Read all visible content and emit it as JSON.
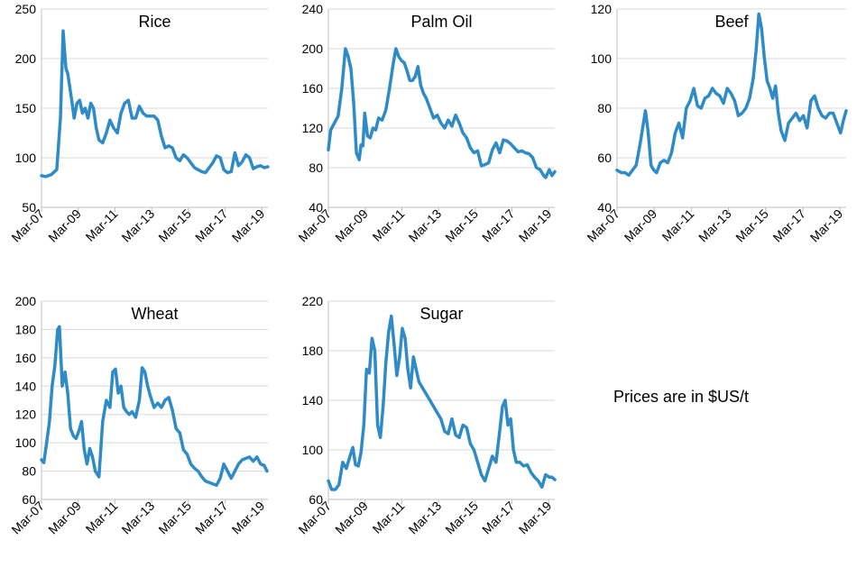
{
  "note": "Prices are in $US/t",
  "colors": {
    "line": "#2e8bc7",
    "grid": "#d9d9d9",
    "axis": "#bfbfbf",
    "text": "#000000"
  },
  "chart_data": [
    {
      "type": "line",
      "title": "Rice",
      "ylim": [
        50,
        250
      ],
      "yticks": [
        50,
        100,
        150,
        200,
        250
      ],
      "xlim": [
        2007.17,
        2019.5
      ],
      "xticks": [
        {
          "label": "Mar-07",
          "x": 2007.17
        },
        {
          "label": "Mar-09",
          "x": 2009.17
        },
        {
          "label": "Mar-11",
          "x": 2011.17
        },
        {
          "label": "Mar-13",
          "x": 2013.17
        },
        {
          "label": "Mar-15",
          "x": 2015.17
        },
        {
          "label": "Mar-17",
          "x": 2017.17
        },
        {
          "label": "Mar-19",
          "x": 2019.17
        }
      ],
      "x": [
        2007.17,
        2007.4,
        2007.7,
        2008.0,
        2008.2,
        2008.35,
        2008.42,
        2008.5,
        2008.6,
        2008.8,
        2008.95,
        2009.1,
        2009.25,
        2009.4,
        2009.55,
        2009.7,
        2009.85,
        2010.0,
        2010.15,
        2010.3,
        2010.5,
        2010.7,
        2010.9,
        2011.1,
        2011.3,
        2011.5,
        2011.7,
        2011.9,
        2012.1,
        2012.3,
        2012.5,
        2012.7,
        2012.9,
        2013.1,
        2013.3,
        2013.5,
        2013.7,
        2013.9,
        2014.1,
        2014.3,
        2014.5,
        2014.7,
        2014.9,
        2015.1,
        2015.3,
        2015.5,
        2015.7,
        2015.9,
        2016.1,
        2016.3,
        2016.5,
        2016.7,
        2016.9,
        2017.1,
        2017.3,
        2017.5,
        2017.7,
        2017.9,
        2018.1,
        2018.3,
        2018.5,
        2018.7,
        2018.9,
        2019.1,
        2019.3,
        2019.5
      ],
      "values": [
        82,
        81,
        83,
        88,
        140,
        228,
        210,
        190,
        185,
        160,
        140,
        155,
        158,
        145,
        150,
        140,
        155,
        150,
        130,
        118,
        115,
        125,
        138,
        130,
        125,
        145,
        155,
        158,
        140,
        140,
        152,
        145,
        142,
        142,
        142,
        138,
        122,
        110,
        112,
        110,
        100,
        97,
        103,
        100,
        95,
        90,
        88,
        86,
        85,
        90,
        95,
        102,
        100,
        88,
        85,
        86,
        105,
        92,
        96,
        103,
        100,
        89,
        91,
        92,
        90,
        91
      ]
    },
    {
      "type": "line",
      "title": "Palm Oil",
      "ylim": [
        40,
        240
      ],
      "yticks": [
        40,
        80,
        120,
        160,
        200,
        240
      ],
      "xlim": [
        2007.17,
        2019.5
      ],
      "xticks": [
        {
          "label": "Mar-07",
          "x": 2007.17
        },
        {
          "label": "Mar-09",
          "x": 2009.17
        },
        {
          "label": "Mar-11",
          "x": 2011.17
        },
        {
          "label": "Mar-13",
          "x": 2013.17
        },
        {
          "label": "Mar-15",
          "x": 2015.17
        },
        {
          "label": "Mar-17",
          "x": 2017.17
        },
        {
          "label": "Mar-19",
          "x": 2019.17
        }
      ],
      "x": [
        2007.17,
        2007.3,
        2007.5,
        2007.7,
        2007.9,
        2008.1,
        2008.25,
        2008.4,
        2008.55,
        2008.7,
        2008.85,
        2008.95,
        2009.05,
        2009.15,
        2009.3,
        2009.45,
        2009.6,
        2009.75,
        2009.9,
        2010.1,
        2010.3,
        2010.5,
        2010.7,
        2010.85,
        2011.0,
        2011.15,
        2011.3,
        2011.45,
        2011.6,
        2011.75,
        2011.9,
        2012.05,
        2012.2,
        2012.35,
        2012.5,
        2012.7,
        2012.9,
        2013.1,
        2013.3,
        2013.5,
        2013.7,
        2013.9,
        2014.1,
        2014.3,
        2014.5,
        2014.7,
        2014.9,
        2015.1,
        2015.3,
        2015.5,
        2015.7,
        2015.9,
        2016.1,
        2016.3,
        2016.5,
        2016.7,
        2016.9,
        2017.1,
        2017.3,
        2017.5,
        2017.7,
        2017.9,
        2018.1,
        2018.3,
        2018.5,
        2018.7,
        2018.9,
        2019.0,
        2019.2,
        2019.35,
        2019.5
      ],
      "values": [
        98,
        118,
        125,
        132,
        160,
        200,
        192,
        180,
        145,
        95,
        88,
        103,
        102,
        135,
        112,
        110,
        120,
        118,
        130,
        128,
        138,
        160,
        185,
        200,
        192,
        188,
        186,
        178,
        168,
        168,
        172,
        182,
        163,
        155,
        150,
        140,
        130,
        133,
        125,
        120,
        128,
        122,
        133,
        125,
        115,
        110,
        100,
        95,
        97,
        82,
        83,
        85,
        98,
        105,
        95,
        108,
        107,
        104,
        100,
        96,
        97,
        95,
        94,
        90,
        80,
        78,
        72,
        70,
        78,
        72,
        76
      ]
    },
    {
      "type": "line",
      "title": "Beef",
      "ylim": [
        40,
        120
      ],
      "yticks": [
        40,
        60,
        80,
        100,
        120
      ],
      "xlim": [
        2007.17,
        2019.5
      ],
      "xticks": [
        {
          "label": "Mar-07",
          "x": 2007.17
        },
        {
          "label": "Mar-09",
          "x": 2009.17
        },
        {
          "label": "Mar-11",
          "x": 2011.17
        },
        {
          "label": "Mar-13",
          "x": 2013.17
        },
        {
          "label": "Mar-15",
          "x": 2015.17
        },
        {
          "label": "Mar-17",
          "x": 2017.17
        },
        {
          "label": "Mar-19",
          "x": 2019.17
        }
      ],
      "x": [
        2007.17,
        2007.4,
        2007.6,
        2007.8,
        2008.0,
        2008.2,
        2008.4,
        2008.55,
        2008.7,
        2008.85,
        2009.0,
        2009.15,
        2009.3,
        2009.5,
        2009.7,
        2009.9,
        2010.1,
        2010.3,
        2010.5,
        2010.7,
        2010.9,
        2011.1,
        2011.3,
        2011.5,
        2011.7,
        2011.9,
        2012.1,
        2012.3,
        2012.5,
        2012.7,
        2012.9,
        2013.1,
        2013.3,
        2013.5,
        2013.7,
        2013.9,
        2014.1,
        2014.3,
        2014.5,
        2014.65,
        2014.8,
        2014.95,
        2015.1,
        2015.25,
        2015.4,
        2015.55,
        2015.7,
        2015.85,
        2016.0,
        2016.2,
        2016.4,
        2016.6,
        2016.8,
        2017.0,
        2017.2,
        2017.4,
        2017.6,
        2017.8,
        2018.0,
        2018.2,
        2018.4,
        2018.6,
        2018.8,
        2019.0,
        2019.2,
        2019.35,
        2019.5
      ],
      "values": [
        55,
        54,
        54,
        53,
        55,
        57,
        65,
        72,
        79,
        70,
        57,
        55,
        54,
        58,
        59,
        58,
        62,
        70,
        74,
        68,
        80,
        83,
        88,
        81,
        80,
        84,
        85,
        88,
        86,
        85,
        82,
        88,
        86,
        83,
        77,
        78,
        80,
        84,
        92,
        103,
        118,
        112,
        100,
        91,
        88,
        84,
        89,
        78,
        71,
        67,
        74,
        76,
        78,
        75,
        77,
        72,
        83,
        85,
        80,
        77,
        76,
        78,
        78,
        74,
        70,
        75,
        79
      ]
    },
    {
      "type": "line",
      "title": "Wheat",
      "ylim": [
        60,
        200
      ],
      "yticks": [
        60,
        80,
        100,
        120,
        140,
        160,
        180,
        200
      ],
      "xlim": [
        2007.17,
        2019.5
      ],
      "xticks": [
        {
          "label": "Mar-07",
          "x": 2007.17
        },
        {
          "label": "Mar-09",
          "x": 2009.17
        },
        {
          "label": "Mar-11",
          "x": 2011.17
        },
        {
          "label": "Mar-13",
          "x": 2013.17
        },
        {
          "label": "Mar-15",
          "x": 2015.17
        },
        {
          "label": "Mar-17",
          "x": 2017.17
        },
        {
          "label": "Mar-19",
          "x": 2019.17
        }
      ],
      "x": [
        2007.17,
        2007.3,
        2007.45,
        2007.6,
        2007.75,
        2007.9,
        2008.05,
        2008.15,
        2008.3,
        2008.45,
        2008.6,
        2008.75,
        2008.9,
        2009.05,
        2009.2,
        2009.35,
        2009.5,
        2009.65,
        2009.8,
        2009.95,
        2010.1,
        2010.3,
        2010.5,
        2010.7,
        2010.9,
        2011.05,
        2011.2,
        2011.35,
        2011.5,
        2011.65,
        2011.8,
        2011.95,
        2012.1,
        2012.3,
        2012.5,
        2012.65,
        2012.8,
        2012.95,
        2013.1,
        2013.3,
        2013.5,
        2013.7,
        2013.9,
        2014.1,
        2014.3,
        2014.5,
        2014.7,
        2014.9,
        2015.1,
        2015.3,
        2015.5,
        2015.7,
        2015.9,
        2016.1,
        2016.3,
        2016.5,
        2016.7,
        2016.9,
        2017.1,
        2017.3,
        2017.5,
        2017.7,
        2017.9,
        2018.1,
        2018.3,
        2018.5,
        2018.7,
        2018.9,
        2019.1,
        2019.3,
        2019.45
      ],
      "values": [
        88,
        86,
        100,
        115,
        140,
        155,
        180,
        182,
        140,
        150,
        135,
        110,
        105,
        103,
        108,
        115,
        95,
        85,
        96,
        90,
        80,
        76,
        115,
        130,
        125,
        150,
        152,
        135,
        140,
        125,
        122,
        120,
        122,
        118,
        130,
        153,
        150,
        140,
        133,
        125,
        128,
        125,
        130,
        132,
        123,
        110,
        107,
        95,
        92,
        85,
        82,
        80,
        76,
        73,
        72,
        71,
        70,
        75,
        85,
        80,
        75,
        80,
        85,
        88,
        89,
        90,
        87,
        90,
        85,
        84,
        80
      ]
    },
    {
      "type": "line",
      "title": "Sugar",
      "ylim": [
        60,
        220
      ],
      "yticks": [
        60,
        100,
        140,
        180,
        220
      ],
      "xlim": [
        2007.17,
        2019.5
      ],
      "xticks": [
        {
          "label": "Mar-07",
          "x": 2007.17
        },
        {
          "label": "Mar-09",
          "x": 2009.17
        },
        {
          "label": "Mar-11",
          "x": 2011.17
        },
        {
          "label": "Mar-13",
          "x": 2013.17
        },
        {
          "label": "Mar-15",
          "x": 2015.17
        },
        {
          "label": "Mar-17",
          "x": 2017.17
        },
        {
          "label": "Mar-19",
          "x": 2019.17
        }
      ],
      "x": [
        2007.17,
        2007.35,
        2007.55,
        2007.75,
        2007.95,
        2008.15,
        2008.35,
        2008.5,
        2008.65,
        2008.8,
        2008.95,
        2009.1,
        2009.25,
        2009.4,
        2009.55,
        2009.7,
        2009.85,
        2010.0,
        2010.15,
        2010.3,
        2010.45,
        2010.6,
        2010.75,
        2010.9,
        2011.05,
        2011.2,
        2011.35,
        2011.5,
        2011.65,
        2011.8,
        2011.95,
        2012.1,
        2012.3,
        2012.5,
        2012.7,
        2012.9,
        2013.1,
        2013.3,
        2013.5,
        2013.7,
        2013.9,
        2014.1,
        2014.3,
        2014.5,
        2014.7,
        2014.9,
        2015.1,
        2015.3,
        2015.5,
        2015.7,
        2015.9,
        2016.1,
        2016.3,
        2016.5,
        2016.65,
        2016.8,
        2016.95,
        2017.1,
        2017.25,
        2017.4,
        2017.6,
        2017.8,
        2018.0,
        2018.2,
        2018.4,
        2018.6,
        2018.8,
        2019.0,
        2019.2,
        2019.35,
        2019.5
      ],
      "values": [
        75,
        68,
        68,
        72,
        90,
        85,
        95,
        102,
        88,
        87,
        98,
        120,
        165,
        162,
        190,
        180,
        120,
        110,
        135,
        170,
        195,
        208,
        185,
        160,
        175,
        198,
        190,
        165,
        150,
        175,
        165,
        155,
        150,
        145,
        140,
        135,
        130,
        125,
        115,
        113,
        125,
        112,
        110,
        120,
        118,
        105,
        100,
        90,
        80,
        75,
        85,
        95,
        90,
        115,
        135,
        140,
        120,
        125,
        100,
        90,
        90,
        87,
        88,
        82,
        78,
        75,
        70,
        80,
        78,
        78,
        76
      ]
    }
  ]
}
